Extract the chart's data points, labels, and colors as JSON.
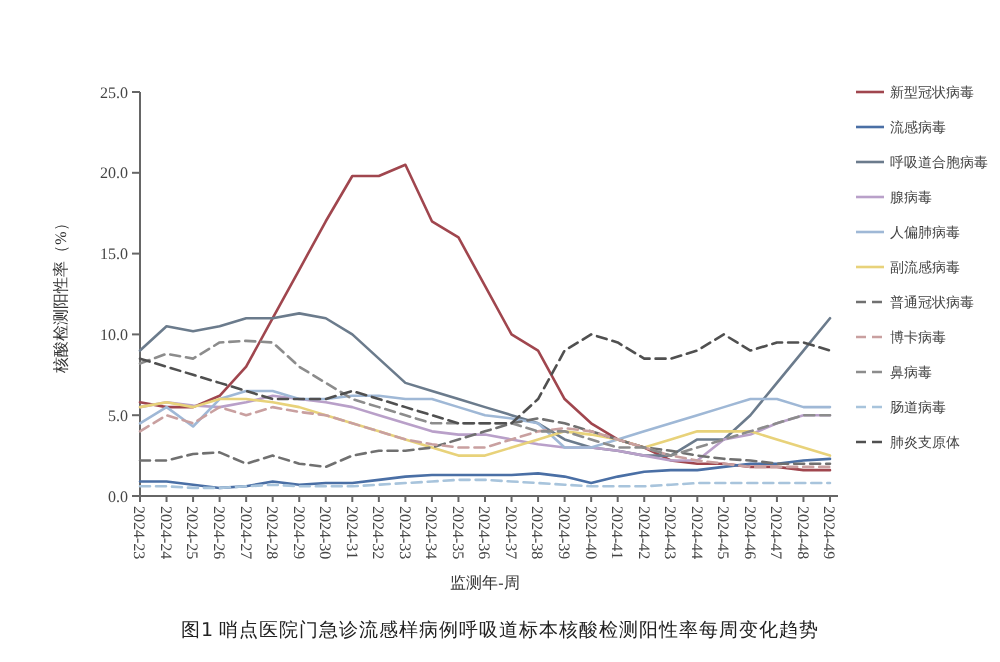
{
  "chart_data": {
    "type": "line",
    "title": "图1 哨点医院门急诊流感样病例呼吸道标本核酸检测阳性率每周变化趋势",
    "xlabel": "监测年-周",
    "ylabel": "核酸检测阳性率（%）",
    "categories": [
      "2024-23",
      "2024-24",
      "2024-25",
      "2024-26",
      "2024-27",
      "2024-28",
      "2024-29",
      "2024-30",
      "2024-31",
      "2024-32",
      "2024-33",
      "2024-34",
      "2024-35",
      "2024-36",
      "2024-37",
      "2024-38",
      "2024-39",
      "2024-40",
      "2024-41",
      "2024-42",
      "2024-43",
      "2024-44",
      "2024-45",
      "2024-46",
      "2024-47",
      "2024-48",
      "2024-49"
    ],
    "ylim": [
      0,
      25
    ],
    "yticks": [
      {
        "value": 0,
        "label": "0.0"
      },
      {
        "value": 5,
        "label": "5.0"
      },
      {
        "value": 10,
        "label": "10.0"
      },
      {
        "value": 15,
        "label": "15.0"
      },
      {
        "value": 20,
        "label": "20.0"
      },
      {
        "value": 25,
        "label": "25.0"
      }
    ],
    "grid": false,
    "legend": "right",
    "series": [
      {
        "name": "新型冠状病毒",
        "color": "#a0464e",
        "line_style": "solid",
        "values": [
          5.8,
          5.5,
          5.5,
          6.2,
          8,
          11,
          14,
          17,
          19.8,
          19.8,
          20.5,
          17,
          16,
          13,
          10,
          9,
          6,
          4.5,
          3.5,
          3,
          2.2,
          2,
          2,
          1.8,
          1.8,
          1.6,
          1.6
        ]
      },
      {
        "name": "流感病毒",
        "color": "#4a6fa5",
        "line_style": "solid",
        "values": [
          0.9,
          0.9,
          0.7,
          0.5,
          0.6,
          0.9,
          0.7,
          0.8,
          0.8,
          1,
          1.2,
          1.3,
          1.3,
          1.3,
          1.3,
          1.4,
          1.2,
          0.8,
          1.2,
          1.5,
          1.6,
          1.6,
          1.8,
          2,
          2,
          2.2,
          2.3
        ]
      },
      {
        "name": "呼吸道合胞病毒",
        "color": "#6b7b8c",
        "line_style": "solid",
        "values": [
          9,
          10.5,
          10.2,
          10.5,
          11,
          11,
          11.3,
          11,
          10,
          8.5,
          7,
          6.5,
          6,
          5.5,
          5,
          4.5,
          3.5,
          3,
          2.8,
          2.5,
          2.5,
          3.5,
          3.5,
          5,
          7,
          9,
          11
        ]
      },
      {
        "name": "腺病毒",
        "color": "#b9a0c9",
        "line_style": "solid",
        "values": [
          5.5,
          5.8,
          5.6,
          5.5,
          5.8,
          6.2,
          6,
          5.8,
          5.5,
          5,
          4.5,
          4,
          3.8,
          3.8,
          3.5,
          3.2,
          3,
          3,
          2.8,
          2.5,
          2.2,
          2.2,
          3.5,
          3.8,
          4.5,
          5,
          5
        ]
      },
      {
        "name": "人偏肺病毒",
        "color": "#9fb8d6",
        "line_style": "solid",
        "values": [
          4.5,
          5.5,
          4.3,
          6,
          6.5,
          6.5,
          6,
          6,
          6.2,
          6.2,
          6,
          6,
          5.5,
          5,
          4.8,
          4.5,
          3,
          3,
          3.5,
          4,
          4.5,
          5,
          5.5,
          6,
          6,
          5.5,
          5.5
        ]
      },
      {
        "name": "副流感病毒",
        "color": "#e8d27a",
        "line_style": "solid",
        "values": [
          5.5,
          5.8,
          5.5,
          6,
          6,
          5.8,
          5.5,
          5,
          4.5,
          4,
          3.5,
          3,
          2.5,
          2.5,
          3,
          3.5,
          4,
          3.8,
          3.5,
          3,
          3.5,
          4,
          4,
          4,
          3.5,
          3,
          2.5
        ]
      },
      {
        "name": "普通冠状病毒",
        "color": "#707070",
        "line_style": "dashed",
        "values": [
          2.2,
          2.2,
          2.6,
          2.7,
          2,
          2.5,
          2,
          1.8,
          2.5,
          2.8,
          2.8,
          3,
          3.5,
          4,
          4.5,
          4.8,
          4.5,
          4,
          3.5,
          3,
          2.8,
          2.5,
          2.3,
          2.2,
          2,
          2,
          2
        ]
      },
      {
        "name": "博卡病毒",
        "color": "#c9a0a0",
        "line_style": "dashed",
        "values": [
          4,
          5,
          4.5,
          5.5,
          5,
          5.5,
          5.2,
          5,
          4.5,
          4,
          3.5,
          3.2,
          3,
          3,
          3.5,
          4,
          4.2,
          4,
          3.5,
          3,
          2.5,
          2.2,
          2,
          1.8,
          1.8,
          1.8,
          1.8
        ]
      },
      {
        "name": "鼻病毒",
        "color": "#8c8c8c",
        "line_style": "dashed",
        "values": [
          8.2,
          8.8,
          8.5,
          9.5,
          9.6,
          9.5,
          8,
          7,
          6,
          5.5,
          5,
          4.5,
          4.5,
          4.5,
          4.5,
          4,
          4,
          3.5,
          3,
          3,
          2.5,
          3,
          3.5,
          4,
          4.5,
          5,
          5
        ]
      },
      {
        "name": "肠道病毒",
        "color": "#a8c4dc",
        "line_style": "dashed",
        "values": [
          0.6,
          0.6,
          0.5,
          0.5,
          0.6,
          0.7,
          0.6,
          0.6,
          0.6,
          0.7,
          0.8,
          0.9,
          1,
          1,
          0.9,
          0.8,
          0.7,
          0.6,
          0.6,
          0.6,
          0.7,
          0.8,
          0.8,
          0.8,
          0.8,
          0.8,
          0.8
        ]
      },
      {
        "name": "肺炎支原体",
        "color": "#505050",
        "line_style": "dashed",
        "values": [
          8.5,
          8,
          7.5,
          7,
          6.5,
          6,
          6,
          6,
          6.5,
          6,
          5.5,
          5,
          4.5,
          4.5,
          4.5,
          6,
          9,
          10,
          9.5,
          8.5,
          8.5,
          9,
          10,
          9,
          9.5,
          9.5,
          9
        ]
      }
    ]
  }
}
